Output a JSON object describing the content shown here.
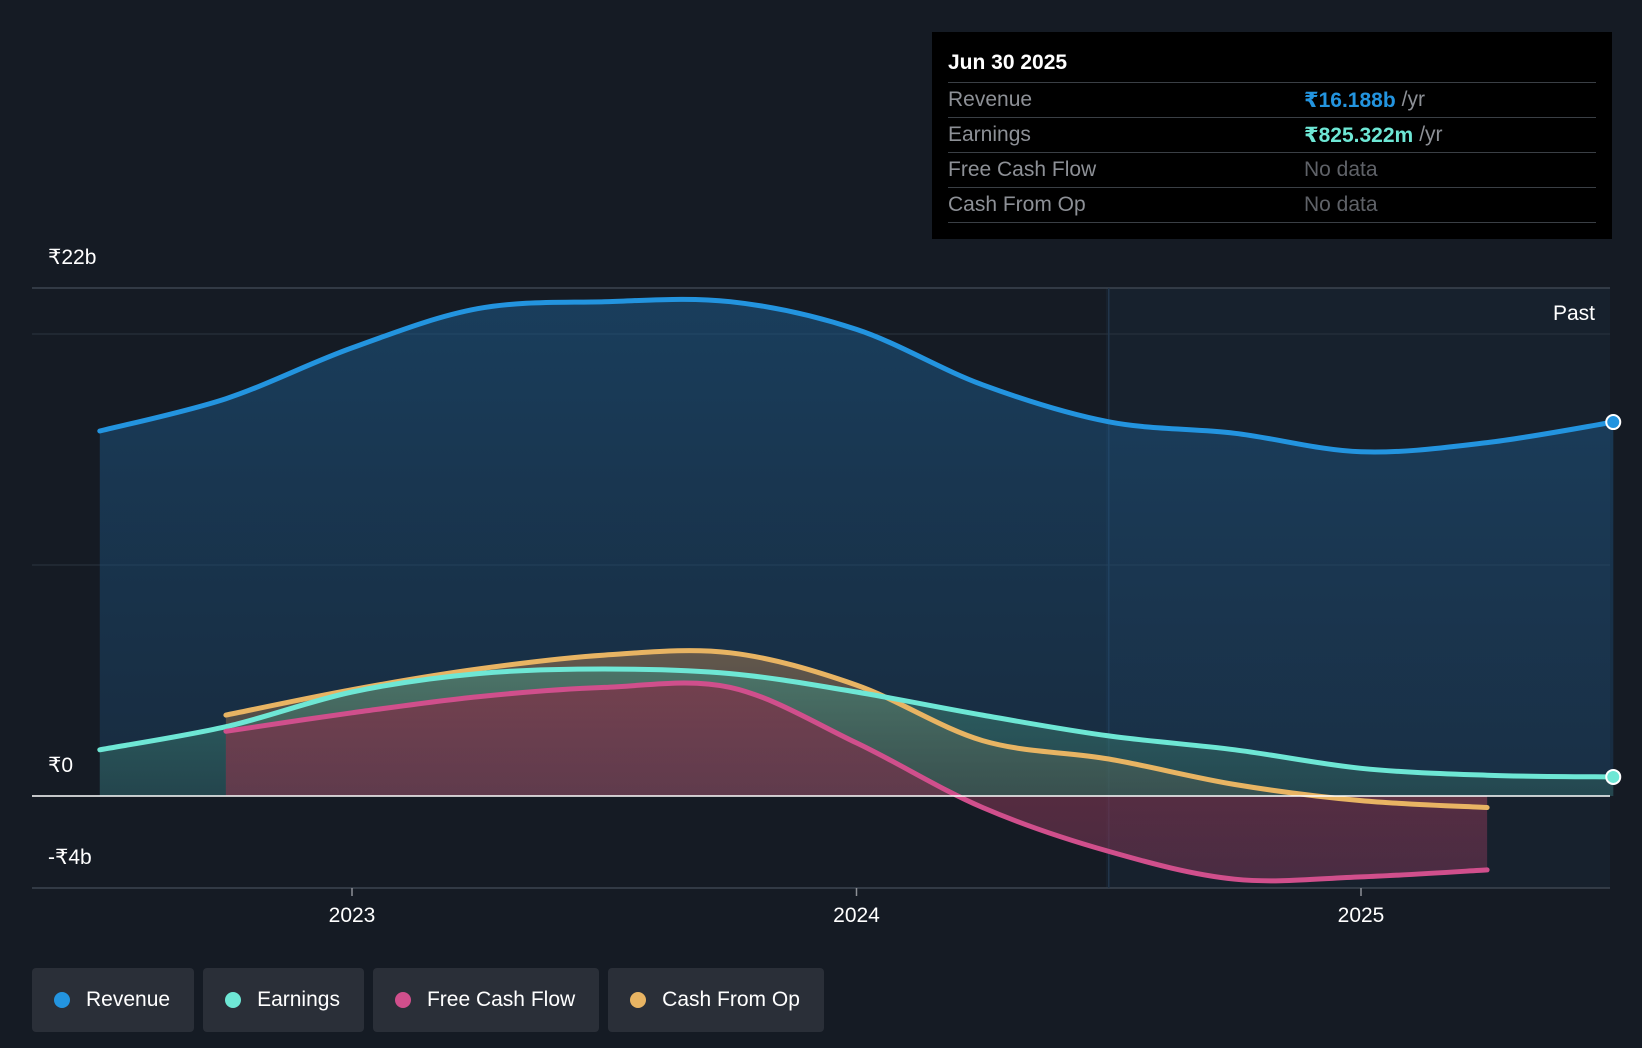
{
  "tooltip": {
    "date": "Jun 30 2025",
    "rows": [
      {
        "label": "Revenue",
        "value": "₹16.188b",
        "unit": "/yr"
      },
      {
        "label": "Earnings",
        "value": "₹825.322m",
        "unit": "/yr"
      },
      {
        "label": "Free Cash Flow",
        "value": "No data"
      },
      {
        "label": "Cash From Op",
        "value": "No data"
      }
    ]
  },
  "legend": [
    {
      "label": "Revenue"
    },
    {
      "label": "Earnings"
    },
    {
      "label": "Free Cash Flow"
    },
    {
      "label": "Cash From Op"
    }
  ],
  "colors": {
    "background": "#151b24",
    "revenue": "#2394df",
    "earnings": "#6ee7d5",
    "free_cash_flow": "#d04f8c",
    "cash_from_op": "#e8b463",
    "past_label": "#ffffff"
  },
  "chart_data": {
    "type": "line",
    "title": "",
    "xlabel": "",
    "ylabel": "",
    "ylim": [
      -4,
      22
    ],
    "y_ticks": [
      "₹22b",
      "₹0",
      "-₹4b"
    ],
    "x_ticks": [
      {
        "label": "2023",
        "value": 2023.0
      },
      {
        "label": "2024",
        "value": 2024.0
      },
      {
        "label": "2025",
        "value": 2025.0
      }
    ],
    "x_range": [
      2022.38,
      2025.5
    ],
    "forecast_divider_x": 2024.5,
    "past_label": "Past",
    "grid": true,
    "units": "INR billions",
    "series": [
      {
        "name": "Revenue",
        "x": [
          2022.5,
          2022.75,
          2023.0,
          2023.25,
          2023.5,
          2023.75,
          2024.0,
          2024.25,
          2024.5,
          2024.75,
          2025.0,
          2025.25,
          2025.5
        ],
        "values": [
          15.8,
          17.2,
          19.4,
          21.1,
          21.4,
          21.4,
          20.2,
          17.8,
          16.2,
          15.7,
          14.9,
          15.3,
          16.188
        ]
      },
      {
        "name": "Earnings",
        "x": [
          2022.5,
          2022.75,
          2023.0,
          2023.25,
          2023.5,
          2023.75,
          2024.0,
          2024.25,
          2024.5,
          2024.75,
          2025.0,
          2025.25,
          2025.5
        ],
        "values": [
          2.0,
          3.0,
          4.5,
          5.3,
          5.5,
          5.3,
          4.5,
          3.5,
          2.6,
          2.0,
          1.2,
          0.9,
          0.825
        ]
      },
      {
        "name": "Free Cash Flow",
        "x": [
          2022.75,
          2023.0,
          2023.25,
          2023.5,
          2023.75,
          2024.0,
          2024.25,
          2024.5,
          2024.75,
          2025.0,
          2025.25
        ],
        "values": [
          2.8,
          3.6,
          4.3,
          4.7,
          4.7,
          2.3,
          -0.5,
          -2.4,
          -3.6,
          -3.5,
          -3.2
        ]
      },
      {
        "name": "Cash From Op",
        "x": [
          2022.75,
          2023.0,
          2023.25,
          2023.5,
          2023.75,
          2024.0,
          2024.25,
          2024.5,
          2024.75,
          2025.0,
          2025.25
        ],
        "values": [
          3.5,
          4.6,
          5.5,
          6.1,
          6.2,
          4.8,
          2.4,
          1.6,
          0.5,
          -0.2,
          -0.5
        ]
      }
    ]
  }
}
